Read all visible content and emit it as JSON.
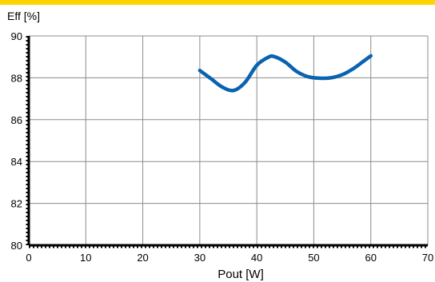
{
  "colors": {
    "top_band": "#FFD400",
    "line": "#0A63B0",
    "grid": "#8c8c8c",
    "axis": "#000000"
  },
  "chart_data": {
    "type": "line",
    "ylabel": "Eff [%]",
    "xlabel": "Pout [W]",
    "xlim": [
      0,
      70
    ],
    "ylim": [
      80,
      90
    ],
    "xticks": [
      0,
      10,
      20,
      30,
      40,
      50,
      60,
      70
    ],
    "yticks": [
      80,
      82,
      84,
      86,
      88,
      90
    ],
    "grid": true,
    "series": [
      {
        "x": [
          30,
          32,
          34,
          36,
          38,
          40,
          42,
          43,
          45,
          47,
          49,
          51,
          53,
          55,
          57,
          59,
          60
        ],
        "y": [
          88.35,
          87.95,
          87.55,
          87.4,
          87.8,
          88.6,
          88.98,
          89.02,
          88.75,
          88.3,
          88.05,
          87.98,
          88.0,
          88.15,
          88.45,
          88.85,
          89.05
        ]
      }
    ]
  }
}
